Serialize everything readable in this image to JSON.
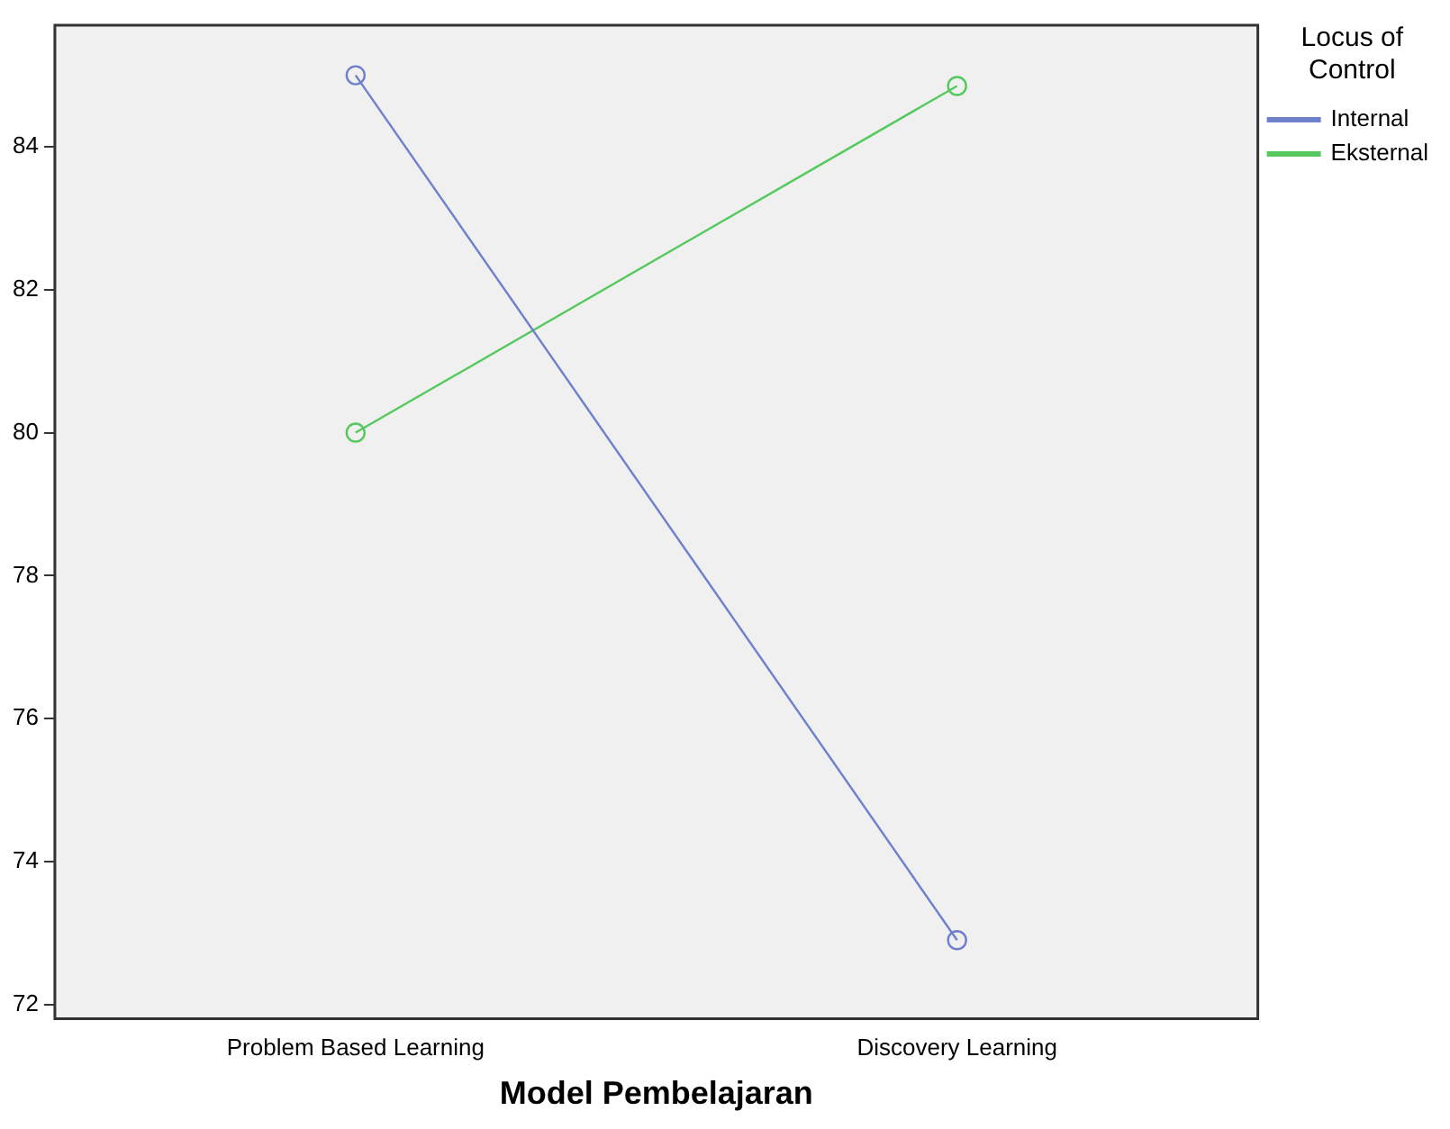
{
  "chart_data": {
    "type": "line",
    "xlabel": "Model Pembelajaran",
    "legend_title": "Locus of Control",
    "categories": [
      "Problem Based Learning",
      "Discovery Learning"
    ],
    "series": [
      {
        "name": "Internal",
        "color": "#6f7fcc",
        "values": [
          85.0,
          72.9
        ]
      },
      {
        "name": "Eksternal",
        "color": "#55c95e",
        "values": [
          80.0,
          84.85
        ]
      }
    ],
    "ylim": [
      71.8,
      85.7
    ],
    "yticks": [
      72,
      74,
      76,
      78,
      80,
      82,
      84
    ],
    "grid": false,
    "legend": "right",
    "marker": "circle",
    "line_style": "solid"
  }
}
